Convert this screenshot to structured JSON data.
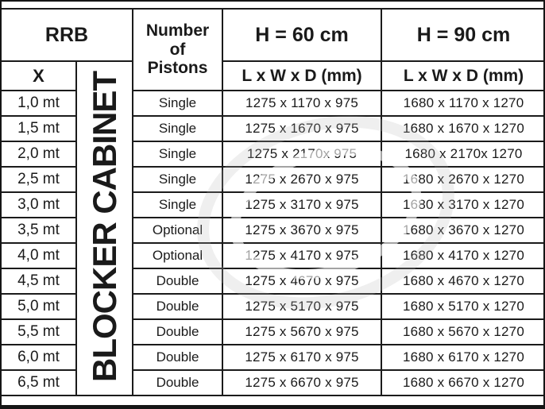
{
  "header": {
    "rrb": "RRB",
    "x_label": "X",
    "pistons_line1": "Number",
    "pistons_line2": "of",
    "pistons_line3": "Pistons",
    "h60": "H = 60 cm",
    "h90": "H = 90 cm",
    "dims_label": "L x W x D (mm)",
    "cabinet_vertical_label": "BLOCKER CABINET"
  },
  "rows": [
    {
      "x": "1,0 mt",
      "pistons": "Single",
      "h60": "1275 x 1170 x 975",
      "h90": "1680 x 1170 x 1270"
    },
    {
      "x": "1,5 mt",
      "pistons": "Single",
      "h60": "1275 x 1670 x 975",
      "h90": "1680 x 1670 x 1270"
    },
    {
      "x": "2,0 mt",
      "pistons": "Single",
      "h60": "1275 x 2170x 975",
      "h90": "1680 x 2170x 1270"
    },
    {
      "x": "2,5 mt",
      "pistons": "Single",
      "h60": "1275 x 2670 x 975",
      "h90": "1680 x 2670 x 1270"
    },
    {
      "x": "3,0 mt",
      "pistons": "Single",
      "h60": "1275 x 3170 x 975",
      "h90": "1680 x 3170 x 1270"
    },
    {
      "x": "3,5 mt",
      "pistons": "Optional",
      "h60": "1275 x 3670 x 975",
      "h90": "1680 x 3670 x 1270"
    },
    {
      "x": "4,0 mt",
      "pistons": "Optional",
      "h60": "1275 x 4170 x 975",
      "h90": "1680 x 4170 x 1270"
    },
    {
      "x": "4,5 mt",
      "pistons": "Double",
      "h60": "1275 x 4670 x 975",
      "h90": "1680 x 4670 x 1270"
    },
    {
      "x": "5,0 mt",
      "pistons": "Double",
      "h60": "1275 x 5170 x 975",
      "h90": "1680 x 5170 x 1270"
    },
    {
      "x": "5,5 mt",
      "pistons": "Double",
      "h60": "1275 x 5670 x 975",
      "h90": "1680 x 5670 x 1270"
    },
    {
      "x": "6,0 mt",
      "pistons": "Double",
      "h60": "1275 x 6170 x 975",
      "h90": "1680 x 6170 x 1270"
    },
    {
      "x": "6,5 mt",
      "pistons": "Double",
      "h60": "1275 x 6670 x 975",
      "h90": "1680 x 6670 x 1270"
    }
  ],
  "colors": {
    "border": "#1b1b1b",
    "text": "#1a1a1a",
    "watermark": "#bdbdbd"
  }
}
